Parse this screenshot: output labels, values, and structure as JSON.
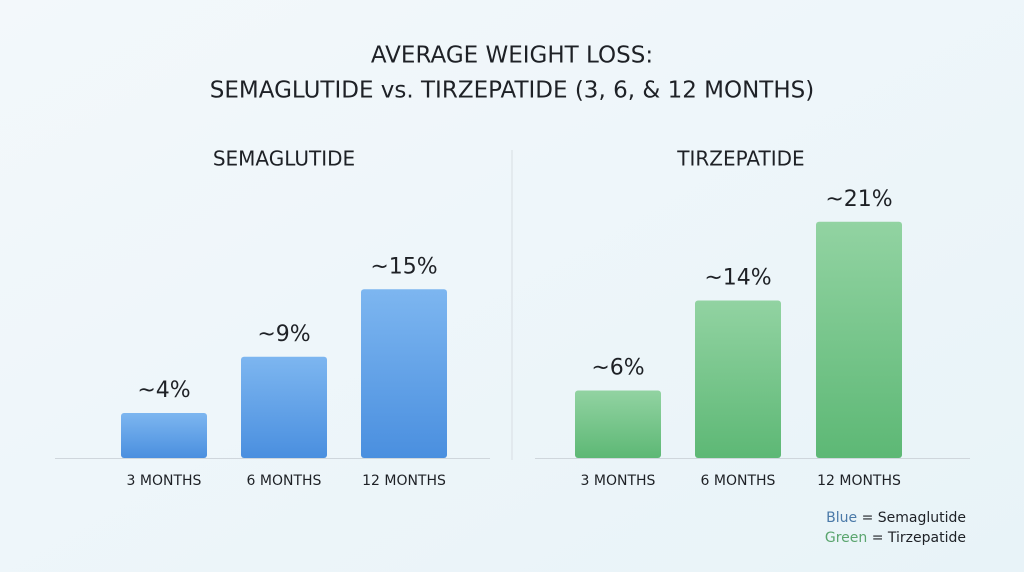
{
  "title": [
    "AVERAGE WEIGHT LOSS:",
    "SEMAGLUTIDE vs. TIRZEPATIDE (3, 6, & 12 MONTHS)"
  ],
  "chart_data": [
    {
      "type": "bar",
      "title": "SEMAGLUTIDE",
      "categories": [
        "3 MONTHS",
        "6 MONTHS",
        "12 MONTHS"
      ],
      "values": [
        4,
        9,
        15
      ],
      "value_labels": [
        "~4%",
        "~9%",
        "~15%"
      ],
      "color": [
        "#7db6f0",
        "#4a8fdf"
      ]
    },
    {
      "type": "bar",
      "title": "TIRZEPATIDE",
      "categories": [
        "3 MONTHS",
        "6 MONTHS",
        "12 MONTHS"
      ],
      "values": [
        6,
        14,
        21
      ],
      "value_labels": [
        "~6%",
        "~14%",
        "~21%"
      ],
      "color": [
        "#92d3a2",
        "#5db875"
      ]
    }
  ],
  "legend": [
    {
      "color_word": "Blue",
      "text": "= Semaglutide"
    },
    {
      "color_word": "Green",
      "text": "= Tirzepatide"
    }
  ]
}
